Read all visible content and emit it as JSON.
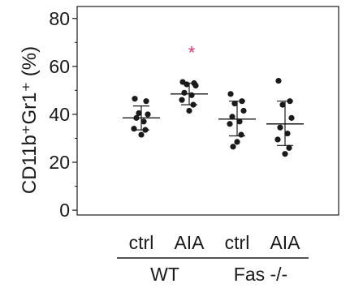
{
  "chart_data": {
    "type": "scatter",
    "ylabel": "CD11b⁺Gr1⁺ (%)",
    "ylim": [
      -2,
      85
    ],
    "yticks": [
      0,
      20,
      40,
      60,
      80
    ],
    "categories": [
      "ctrl",
      "AIA",
      "ctrl",
      "AIA"
    ],
    "groups": [
      {
        "label": "WT",
        "span": [
          0,
          1
        ]
      },
      {
        "label": "Fas -/-",
        "span": [
          2,
          3
        ]
      }
    ],
    "series": [
      {
        "category": "ctrl",
        "group": "WT",
        "points": [
          46.5,
          45.5,
          40.5,
          40,
          38.5,
          37,
          34,
          33.5,
          31.5
        ],
        "mean": 38.5,
        "sd": [
          33.5,
          43.5
        ]
      },
      {
        "category": "AIA",
        "group": "WT",
        "points": [
          53.5,
          53,
          52.5,
          52,
          49,
          48,
          46,
          44,
          41.5
        ],
        "mean": 48.5,
        "sd": [
          44,
          53
        ],
        "annotation": "*"
      },
      {
        "category": "ctrl",
        "group": "Fas -/-",
        "points": [
          48.5,
          45.5,
          44.5,
          41.5,
          39,
          37,
          36,
          31.5,
          28.5,
          26.5
        ],
        "mean": 38,
        "sd": [
          31,
          45.5
        ]
      },
      {
        "category": "AIA",
        "group": "Fas -/-",
        "points": [
          54,
          45.5,
          44,
          38.5,
          34.5,
          32,
          29.5,
          26,
          23.5
        ],
        "mean": 36,
        "sd": [
          27,
          45.5
        ]
      }
    ],
    "colors": {
      "points": "#1a1a1a",
      "annotation": "#e8336d"
    }
  }
}
